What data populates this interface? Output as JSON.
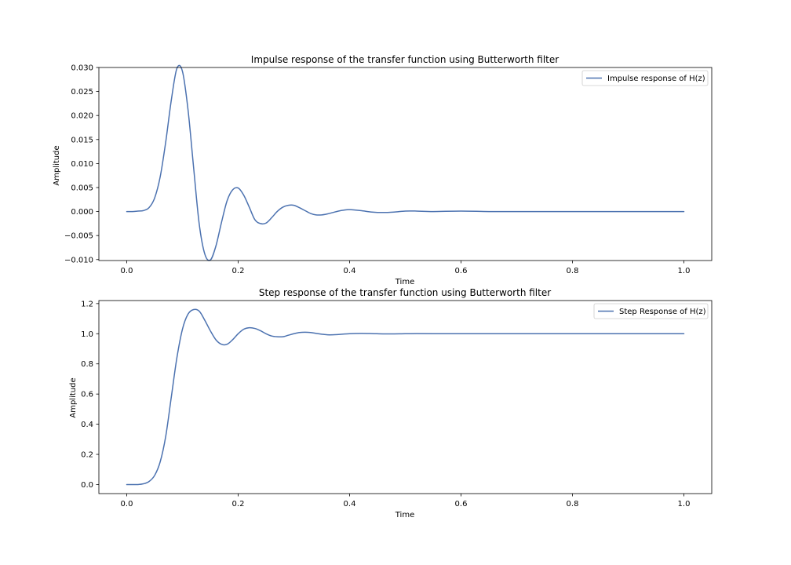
{
  "chart_data": [
    {
      "type": "line",
      "title": "Impulse response of the transfer function using Butterworth filter",
      "xlabel": "Time",
      "ylabel": "Amplitude",
      "xlim": [
        -0.05,
        1.05
      ],
      "ylim": [
        -0.0102,
        0.03
      ],
      "xticks": [
        0.0,
        0.2,
        0.4,
        0.6,
        0.8,
        1.0
      ],
      "xtick_labels": [
        "0.0",
        "0.2",
        "0.4",
        "0.6",
        "0.8",
        "1.0"
      ],
      "yticks": [
        -0.01,
        -0.005,
        0.0,
        0.005,
        0.01,
        0.015,
        0.02,
        0.025,
        0.03
      ],
      "ytick_labels": [
        "−0.010",
        "−0.005",
        "0.000",
        "0.005",
        "0.010",
        "0.015",
        "0.020",
        "0.025",
        "0.030"
      ],
      "grid": false,
      "legend_position": "top-right",
      "series": [
        {
          "name": "Impulse response of H(z)",
          "color": "#4c72b0",
          "x": [
            0.0,
            0.01,
            0.02,
            0.03,
            0.04,
            0.05,
            0.06,
            0.07,
            0.08,
            0.09,
            0.1,
            0.11,
            0.12,
            0.13,
            0.14,
            0.15,
            0.16,
            0.17,
            0.18,
            0.19,
            0.2,
            0.21,
            0.22,
            0.23,
            0.24,
            0.25,
            0.26,
            0.27,
            0.28,
            0.29,
            0.3,
            0.31,
            0.32,
            0.33,
            0.34,
            0.35,
            0.36,
            0.37,
            0.38,
            0.39,
            0.4,
            0.42,
            0.44,
            0.46,
            0.48,
            0.5,
            0.52,
            0.55,
            0.6,
            0.65,
            0.7,
            0.8,
            0.9,
            1.0
          ],
          "y": [
            0.0,
            0.0,
            0.0001,
            0.0002,
            0.0008,
            0.0028,
            0.0072,
            0.0145,
            0.0232,
            0.0298,
            0.0292,
            0.0212,
            0.0092,
            -0.0025,
            -0.0088,
            -0.0101,
            -0.0072,
            -0.0023,
            0.0022,
            0.0045,
            0.0049,
            0.0034,
            0.0009,
            -0.0017,
            -0.0025,
            -0.0024,
            -0.0013,
            0.0,
            0.0009,
            0.0013,
            0.0013,
            0.0008,
            0.0002,
            -0.0004,
            -0.0007,
            -0.0007,
            -0.0005,
            -0.0002,
            0.0001,
            0.0003,
            0.0004,
            0.0002,
            -0.0001,
            -0.0002,
            -0.0001,
            0.0001,
            0.0001,
            0.0,
            0.0001,
            0.0,
            0.0,
            0.0,
            0.0,
            0.0
          ]
        }
      ]
    },
    {
      "type": "line",
      "title": "Step response of the transfer function using Butterworth filter",
      "xlabel": "Time",
      "ylabel": "Amplitude",
      "xlim": [
        -0.05,
        1.05
      ],
      "ylim": [
        -0.06,
        1.22
      ],
      "xticks": [
        0.0,
        0.2,
        0.4,
        0.6,
        0.8,
        1.0
      ],
      "xtick_labels": [
        "0.0",
        "0.2",
        "0.4",
        "0.6",
        "0.8",
        "1.0"
      ],
      "yticks": [
        0.0,
        0.2,
        0.4,
        0.6,
        0.8,
        1.0,
        1.2
      ],
      "ytick_labels": [
        "0.0",
        "0.2",
        "0.4",
        "0.6",
        "0.8",
        "1.0",
        "1.2"
      ],
      "grid": false,
      "legend_position": "top-right",
      "series": [
        {
          "name": "Step Response of H(z)",
          "color": "#4c72b0",
          "x": [
            0.0,
            0.01,
            0.02,
            0.03,
            0.04,
            0.05,
            0.06,
            0.07,
            0.08,
            0.09,
            0.1,
            0.11,
            0.12,
            0.13,
            0.14,
            0.15,
            0.16,
            0.17,
            0.18,
            0.19,
            0.2,
            0.21,
            0.22,
            0.23,
            0.24,
            0.25,
            0.26,
            0.27,
            0.28,
            0.29,
            0.3,
            0.31,
            0.32,
            0.33,
            0.34,
            0.35,
            0.36,
            0.37,
            0.38,
            0.4,
            0.42,
            0.44,
            0.46,
            0.48,
            0.5,
            0.52,
            0.55,
            0.6,
            0.65,
            0.7,
            0.8,
            0.9,
            1.0
          ],
          "y": [
            0.0,
            0.0,
            0.0,
            0.005,
            0.02,
            0.06,
            0.15,
            0.32,
            0.58,
            0.84,
            1.03,
            1.13,
            1.16,
            1.15,
            1.09,
            1.02,
            0.96,
            0.93,
            0.93,
            0.96,
            1.0,
            1.03,
            1.04,
            1.035,
            1.02,
            1.0,
            0.985,
            0.98,
            0.98,
            0.99,
            1.0,
            1.008,
            1.01,
            1.008,
            1.002,
            0.997,
            0.993,
            0.993,
            0.995,
            1.0,
            1.002,
            1.001,
            0.999,
            0.999,
            1.0,
            1.001,
            1.0,
            1.0,
            1.0,
            1.0,
            1.0,
            1.0,
            1.0
          ]
        }
      ]
    }
  ]
}
